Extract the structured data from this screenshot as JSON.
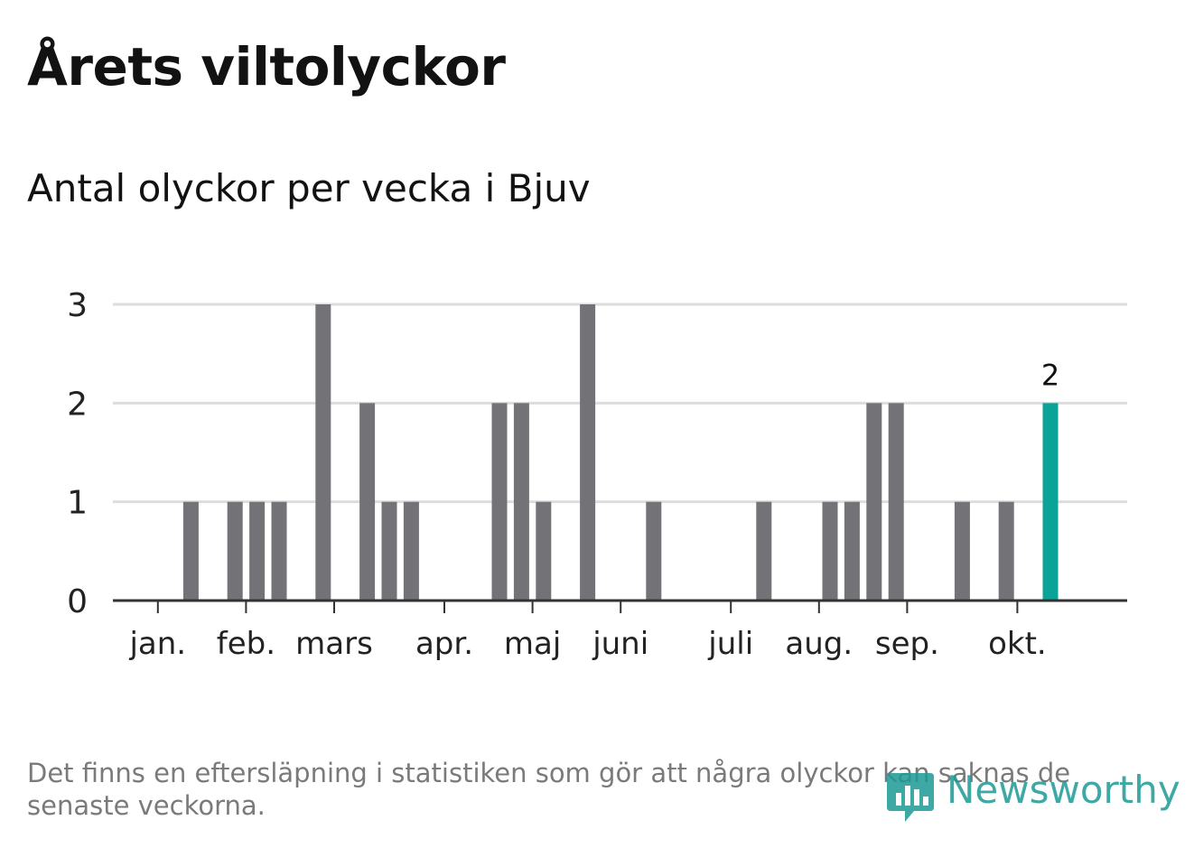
{
  "header": {
    "title": "Årets viltolyckor",
    "subtitle": "Antal olyckor per vecka i Bjuv"
  },
  "footnote": "Det finns en eftersläpning i statistiken som gör att några olyckor kan saknas de senaste veckorna.",
  "brand": {
    "name": "Newsworthy",
    "icon": "bar-chart-speech-bubble-icon",
    "color": "#1d9a96"
  },
  "chart_data": {
    "type": "bar",
    "title": "Antal olyckor per vecka i Bjuv",
    "xlabel": "",
    "ylabel": "",
    "ylim": [
      0,
      3
    ],
    "yticks": [
      0,
      1,
      2,
      3
    ],
    "grid": true,
    "legend": "none",
    "x_unit": "week",
    "weeks": [
      1,
      2,
      3,
      4,
      5,
      6,
      7,
      8,
      9,
      10,
      11,
      12,
      13,
      14,
      15,
      16,
      17,
      18,
      19,
      20,
      21,
      22,
      23,
      24,
      25,
      26,
      27,
      28,
      29,
      30,
      31,
      32,
      33,
      34,
      35,
      36,
      37,
      38,
      39,
      40,
      41,
      42,
      43
    ],
    "values": [
      0,
      0,
      1,
      0,
      1,
      1,
      1,
      0,
      3,
      0,
      2,
      1,
      1,
      0,
      0,
      0,
      2,
      2,
      1,
      0,
      3,
      0,
      0,
      1,
      0,
      0,
      0,
      0,
      1,
      0,
      0,
      1,
      1,
      2,
      2,
      0,
      0,
      1,
      0,
      1,
      0,
      2,
      0
    ],
    "highlight_week": 42,
    "highlight_label": "2",
    "month_ticks": [
      {
        "label": "jan.",
        "week": 1.5
      },
      {
        "label": "feb.",
        "week": 5.5
      },
      {
        "label": "mars",
        "week": 9.5
      },
      {
        "label": "apr.",
        "week": 14.5
      },
      {
        "label": "maj",
        "week": 18.5
      },
      {
        "label": "juni",
        "week": 22.5
      },
      {
        "label": "juli",
        "week": 27.5
      },
      {
        "label": "aug.",
        "week": 31.5
      },
      {
        "label": "sep.",
        "week": 35.5
      },
      {
        "label": "okt.",
        "week": 40.5
      }
    ],
    "colors": {
      "bar": "#737277",
      "highlight": "#0ba397",
      "grid": "#dddddd",
      "axis": "#333333"
    }
  }
}
